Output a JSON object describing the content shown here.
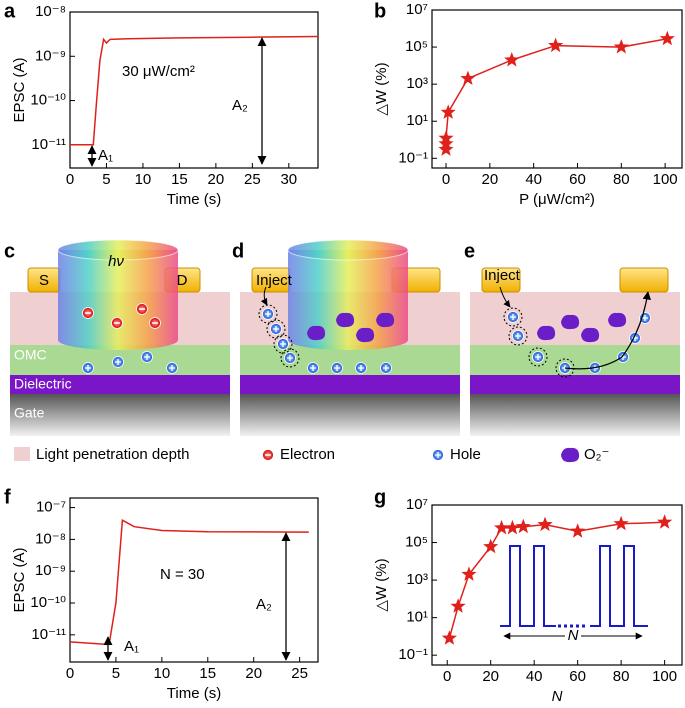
{
  "panels": [
    "a",
    "b",
    "c",
    "d",
    "e",
    "f",
    "g"
  ],
  "chart_data": [
    {
      "type": "line",
      "x_label": "Time (s)",
      "y_label": "EPSC (A)",
      "color": "#e0201b",
      "log_y": true,
      "x": [
        0,
        3.2,
        3.6,
        4.1,
        4.6,
        5.0,
        5.5,
        8,
        15,
        25,
        34
      ],
      "values": [
        1e-11,
        1e-11,
        8e-11,
        8e-10,
        2.4e-09,
        2e-09,
        2.4e-09,
        2.5e-09,
        2.6e-09,
        2.7e-09,
        2.8e-09
      ],
      "xlim": [
        0,
        34
      ],
      "xticks": [
        0,
        5,
        10,
        15,
        20,
        25,
        30
      ],
      "ylim": [
        3e-12,
        1e-08
      ],
      "yticks": [
        {
          "value": 1e-11,
          "label": "10⁻¹¹"
        },
        {
          "value": 1e-10,
          "label": "10⁻¹⁰"
        },
        {
          "value": 1e-09,
          "label": "10⁻⁹"
        },
        {
          "value": 1e-08,
          "label": "10⁻⁸"
        }
      ],
      "annotations": [
        "30 μW/cm²",
        "A₁",
        "A₂"
      ]
    },
    {
      "type": "line",
      "marker": "star",
      "x_label": "P (μW/cm²)",
      "y_label": "△W (%)",
      "color": "#e0201b",
      "log_y": true,
      "x": [
        0,
        0,
        0,
        1,
        10,
        30,
        50,
        80,
        101
      ],
      "values": [
        0.3,
        0.6,
        1.2,
        30,
        2000,
        20000,
        120000,
        100000,
        280000
      ],
      "xlim": [
        -6.4,
        107.7
      ],
      "xticks": [
        0,
        20,
        40,
        60,
        80,
        100
      ],
      "ylim": [
        0.03,
        10000000.0
      ],
      "yticks": [
        {
          "value": 0.1,
          "label": "10⁻¹"
        },
        {
          "value": 10,
          "label": "10¹"
        },
        {
          "value": 1000,
          "label": "10³"
        },
        {
          "value": 100000,
          "label": "10⁵"
        },
        {
          "value": 10000000,
          "label": "10⁷"
        }
      ],
      "annotations": []
    },
    {
      "type": "line",
      "x_label": "Time (s)",
      "y_label": "EPSC (A)",
      "color": "#e0201b",
      "log_y": true,
      "x": [
        0,
        2,
        4,
        4.3,
        5,
        5.7,
        7,
        10,
        15,
        26
      ],
      "values": [
        6e-12,
        5.5e-12,
        5e-12,
        6e-12,
        1e-10,
        4e-08,
        2.5e-08,
        1.9e-08,
        1.75e-08,
        1.7e-08
      ],
      "xlim": [
        0,
        27
      ],
      "xticks": [
        0,
        5,
        10,
        15,
        20,
        25
      ],
      "ylim": [
        1.4e-12,
        2e-07
      ],
      "yticks": [
        {
          "value": 1e-11,
          "label": "10⁻¹¹"
        },
        {
          "value": 1e-10,
          "label": "10⁻¹⁰"
        },
        {
          "value": 1e-09,
          "label": "10⁻⁹"
        },
        {
          "value": 1e-08,
          "label": "10⁻⁸"
        },
        {
          "value": 1e-07,
          "label": "10⁻⁷"
        }
      ],
      "annotations": [
        "N = 30",
        "A₁",
        "A₂"
      ]
    },
    {
      "type": "line",
      "marker": "star",
      "x_label": "N",
      "y_label": "△W (%)",
      "color": "#e0201b",
      "log_y": true,
      "x": [
        1,
        5,
        10,
        20,
        25,
        30,
        35,
        45,
        60,
        80,
        100
      ],
      "values": [
        0.8,
        40,
        2000,
        60000,
        600000,
        600000,
        700000,
        900000,
        400000,
        1000000,
        1200000
      ],
      "xlim": [
        -7,
        108
      ],
      "xticks": [
        0,
        20,
        40,
        60,
        80,
        100
      ],
      "ylim": [
        0.03,
        10000000.0
      ],
      "yticks": [
        {
          "value": 0.1,
          "label": "10⁻¹"
        },
        {
          "value": 10,
          "label": "10¹"
        },
        {
          "value": 1000,
          "label": "10³"
        },
        {
          "value": 100000,
          "label": "10⁵"
        },
        {
          "value": 10000000,
          "label": "10⁷"
        }
      ],
      "annotations": [
        "N"
      ]
    }
  ],
  "diagram": {
    "light": "hν",
    "source": "S",
    "drain": "D",
    "layers": [
      "OMC",
      "Dielectric",
      "Gate"
    ],
    "inject": [
      "Inject",
      "Inject"
    ],
    "legend": [
      "Light penetration depth",
      "Electron",
      "Hole",
      "O₂⁻"
    ]
  }
}
